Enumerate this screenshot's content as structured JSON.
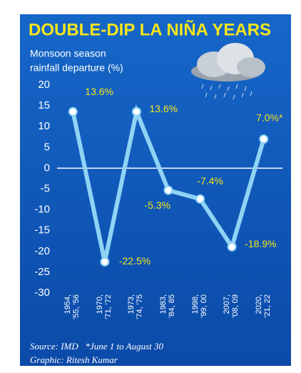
{
  "chart_data": {
    "type": "line",
    "title": "DOUBLE-DIP LA NIÑA YEARS",
    "subtitle": [
      "Monsoon season",
      "rainfall departure (%)"
    ],
    "categories": [
      "1954,\n'55, '56",
      "1970,\n'71, '72",
      "1973,\n'74, '75",
      "1983,\n'84, 85",
      "1998,\n'99, 00",
      "2007,\n'08, 09",
      "2020,\n'21, 22"
    ],
    "values": [
      13.6,
      -22.5,
      13.6,
      -5.3,
      -7.4,
      -18.9,
      7.0
    ],
    "value_labels": [
      "13.6%",
      "-22.5%",
      "13.6%",
      "-5.3%",
      "-7.4%",
      "-18.9%",
      "7.0%*"
    ],
    "color": "#8fd3f5",
    "ylim": [
      -30,
      20
    ],
    "yticks": [
      20,
      15,
      10,
      5,
      0,
      -5,
      -10,
      -15,
      -20,
      -25,
      -30
    ],
    "footer": [
      "Source: IMD   *June 1 to August 30",
      "Graphic: Ritesh Kumar"
    ]
  }
}
